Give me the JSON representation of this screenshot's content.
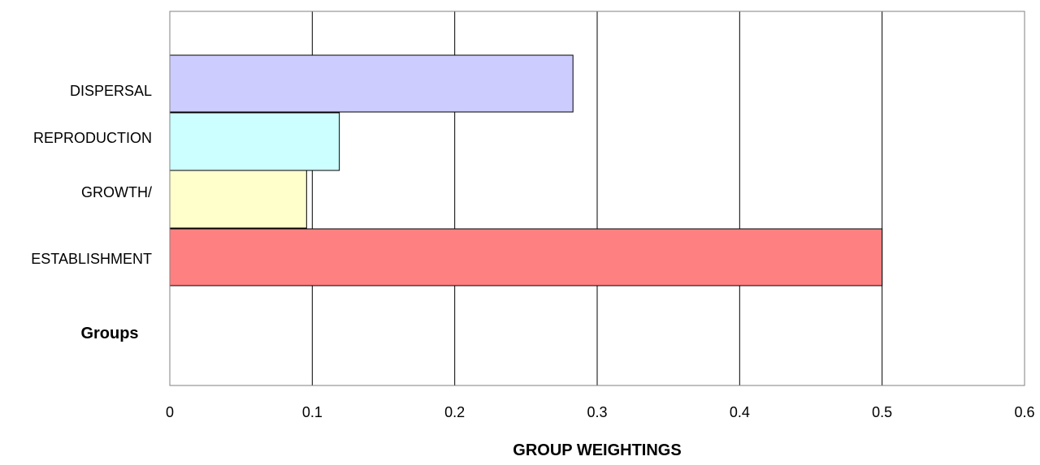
{
  "chart_data": {
    "type": "bar",
    "orientation": "horizontal",
    "categories": [
      "DISPERSAL",
      "REPRODUCTION",
      "GROWTH/",
      "ESTABLISHMENT"
    ],
    "values": [
      0.283,
      0.119,
      0.096,
      0.5
    ],
    "colors": [
      "#ccccff",
      "#ccffff",
      "#ffffcc",
      "#ff8080"
    ],
    "xlabel": "GROUP WEIGHTINGS",
    "ylabel": "Groups",
    "xlim": [
      0,
      0.6
    ],
    "xticks": [
      "0",
      "0.1",
      "0.2",
      "0.3",
      "0.4",
      "0.5",
      "0.6"
    ],
    "grid": "vertical"
  }
}
